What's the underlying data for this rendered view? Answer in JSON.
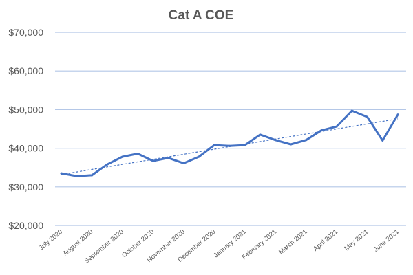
{
  "chart_data": {
    "type": "line",
    "title": "Cat A COE",
    "xlabel": "",
    "ylabel": "",
    "ylim": [
      20000,
      70000
    ],
    "y_ticks": [
      {
        "value": 20000,
        "label": "$20,000"
      },
      {
        "value": 30000,
        "label": "$30,000"
      },
      {
        "value": 40000,
        "label": "$40,000"
      },
      {
        "value": 50000,
        "label": "$50,000"
      },
      {
        "value": 60000,
        "label": "$60,000"
      },
      {
        "value": 70000,
        "label": "$70,000"
      }
    ],
    "grid": true,
    "x_ticks": [
      "July 2020",
      "August 2020",
      "September 2020",
      "October 2020",
      "Novernber 2020",
      "December 2020",
      "January 2021",
      "February 2021",
      "March 2021",
      "April 2021",
      "May 2021",
      "June 2021"
    ],
    "x_range": [
      0,
      22
    ],
    "series": [
      {
        "x": [
          0,
          1,
          2,
          3,
          4,
          5,
          6,
          7,
          8,
          9,
          10,
          11,
          12,
          13,
          14,
          15,
          16,
          17,
          18,
          19,
          20,
          21,
          22
        ],
        "values": [
          33500,
          32800,
          33000,
          35800,
          37800,
          38600,
          36700,
          37500,
          36100,
          37800,
          40800,
          40600,
          40800,
          43500,
          42100,
          41000,
          42100,
          44600,
          45600,
          49700,
          48100,
          42000,
          48700
        ],
        "color": "#4472C4"
      }
    ],
    "trendline": {
      "type": "linear",
      "start": {
        "x": 0,
        "y": 33200
      },
      "end": {
        "x": 22,
        "y": 47600
      },
      "color": "#4472C4",
      "style": "dashed"
    },
    "colors": {
      "series": "#4472C4",
      "grid": "#B4C7E7",
      "text": "#595959"
    }
  }
}
